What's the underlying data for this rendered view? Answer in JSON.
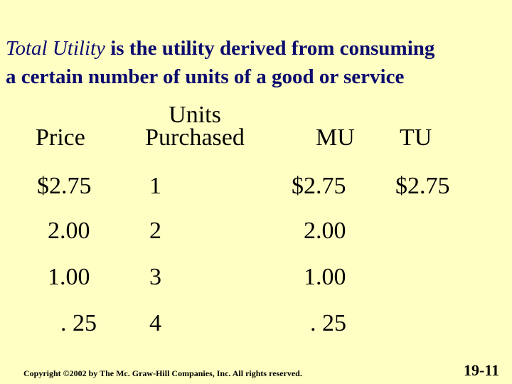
{
  "title": {
    "lead": "Total Utility",
    "rest_line1": " is the utility derived from consuming",
    "line2": "a certain number of units of a good or service"
  },
  "table": {
    "headers": {
      "price": "Price",
      "units_line1": "Units",
      "units_line2": "Purchased",
      "mu": "MU",
      "tu": "TU"
    },
    "rows": [
      {
        "price": "$2.75",
        "units": "1",
        "mu": "$2.75",
        "tu": "$2.75"
      },
      {
        "price": "2.00",
        "units": "2",
        "mu": "2.00",
        "tu": ""
      },
      {
        "price": "1.00",
        "units": "3",
        "mu": "1.00",
        "tu": ""
      },
      {
        "price": ". 25",
        "units": "4",
        "mu": ". 25",
        "tu": ""
      }
    ]
  },
  "footer": {
    "copyright": "Copyright ©2002 by The Mc. Graw-Hill Companies, Inc.  All rights reserved.",
    "slide_number": "19-11"
  }
}
